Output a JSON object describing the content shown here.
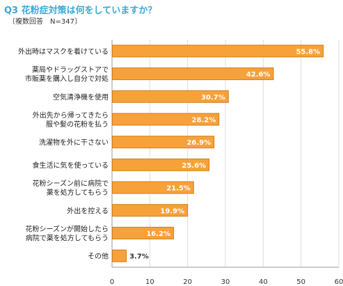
{
  "header": {
    "title": "Q3 花粉症対策は何をしていますか？",
    "subtitle": "〔複数回答　N=347〕"
  },
  "colors": {
    "bar_fill": "#f7a13a",
    "bar_outline": "#d07e1c",
    "title_color": "#39a8d8",
    "grid_color": "#dddddd",
    "value_label_inside": "#ffffff",
    "value_label_outside": "#333333"
  },
  "chart_data": {
    "type": "bar",
    "orientation": "horizontal",
    "categories": [
      [
        "外出時はマスクを着けている"
      ],
      [
        "薬局やドラッグストアで",
        "市販薬を購入し自分で対処"
      ],
      [
        "空気清浄機を使用"
      ],
      [
        "外出先から帰ってきたら",
        "服や髪の花粉を払う"
      ],
      [
        "洗濯物を外に干さない"
      ],
      [
        "食生活に気を使っている"
      ],
      [
        "花粉シーズン前に病院で",
        "薬を処方してもらう"
      ],
      [
        "外出を控える"
      ],
      [
        "花粉シーズンが開始したら",
        "病院で薬を処方してもらう"
      ],
      [
        "その他"
      ]
    ],
    "values": [
      55.8,
      42.6,
      30.7,
      28.2,
      26.9,
      25.6,
      21.5,
      19.9,
      16.2,
      3.7
    ],
    "value_labels": [
      "55.8%",
      "42.6%",
      "30.7%",
      "28.2%",
      "26.9%",
      "25.6%",
      "21.5%",
      "19.9%",
      "16.2%",
      "3.7%"
    ],
    "xlim": [
      0,
      60
    ],
    "xticks": [
      "0",
      "10",
      "20",
      "30",
      "40",
      "50",
      "60"
    ],
    "grid": true
  }
}
